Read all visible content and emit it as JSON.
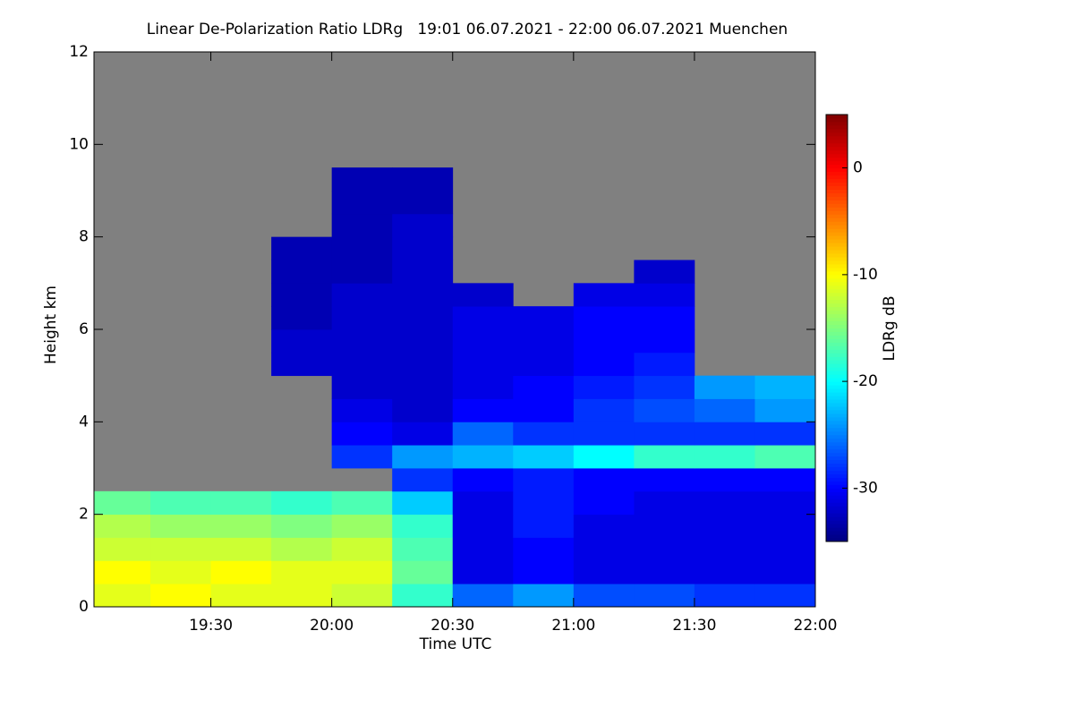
{
  "chart_data": {
    "type": "heatmap",
    "title": "Linear De-Polarization Ratio LDRg   19:01 06.07.2021 - 22:00 06.07.2021 Muenchen",
    "x_label": "Time UTC",
    "y_label": "Height km",
    "colorbar_label": "LDRg dB",
    "background_color": "#808080",
    "colormap": "jet",
    "xlim": [
      "19:01",
      "22:00"
    ],
    "xticks": [
      "19:30",
      "20:00",
      "20:30",
      "21:00",
      "21:30",
      "22:00"
    ],
    "ylim": [
      0,
      12
    ],
    "yticks": [
      0,
      2,
      4,
      6,
      8,
      10,
      12
    ],
    "clim": [
      -35,
      5
    ],
    "cticks": [
      0,
      -10,
      -20,
      -30
    ],
    "x_bins": [
      "19:01",
      "19:15",
      "19:30",
      "19:45",
      "20:00",
      "20:15",
      "20:30",
      "20:45",
      "21:00",
      "21:15",
      "21:30",
      "21:45",
      "22:00"
    ],
    "y_bins": [
      0,
      0.5,
      1,
      1.5,
      2,
      2.5,
      3,
      3.5,
      4,
      4.5,
      5,
      5.5,
      6,
      6.5,
      7,
      7.5,
      8,
      8.5,
      9,
      9.5
    ],
    "values": [
      [
        -11,
        -10,
        -11,
        -11,
        -12,
        -18,
        -26,
        -24,
        -27,
        -27,
        -28,
        -28
      ],
      [
        -10,
        -11,
        -10,
        -11,
        -11,
        -16,
        -31,
        -30,
        -31,
        -31,
        -31,
        -31
      ],
      [
        -12,
        -12,
        -12,
        -13,
        -12,
        -17,
        -31,
        -30,
        -31,
        -31,
        -31,
        -31
      ],
      [
        -13,
        -14,
        -14,
        -15,
        -14,
        -18,
        -31,
        -29,
        -31,
        -31,
        -31,
        -31
      ],
      [
        -16,
        -17,
        -17,
        -18,
        -17,
        -22,
        -31,
        -29,
        -30,
        -31,
        -31,
        -31
      ],
      [
        null,
        null,
        null,
        null,
        null,
        -28,
        -30,
        -29,
        -30,
        -30,
        -30,
        -30
      ],
      [
        null,
        null,
        null,
        null,
        -28,
        -24,
        -23,
        -22,
        -20,
        -18,
        -18,
        -17
      ],
      [
        null,
        null,
        null,
        null,
        -30,
        -31,
        -26,
        -28,
        -28,
        -28,
        -28,
        -28
      ],
      [
        null,
        null,
        null,
        null,
        -31,
        -32,
        -30,
        -30,
        -28,
        -27,
        -26,
        -24
      ],
      [
        null,
        null,
        null,
        null,
        -32,
        -32,
        -31,
        -30,
        -29,
        -28,
        -24,
        -23
      ],
      [
        null,
        null,
        null,
        -32,
        -32,
        -32,
        -31,
        -31,
        -30,
        -29,
        null,
        null
      ],
      [
        null,
        null,
        null,
        -32,
        -32,
        -32,
        -31,
        -31,
        -30,
        -30,
        null,
        null
      ],
      [
        null,
        null,
        null,
        -33,
        -32,
        -32,
        -31,
        -31,
        -30,
        -30,
        null,
        null
      ],
      [
        null,
        null,
        null,
        -33,
        -32,
        -32,
        -32,
        null,
        -31,
        -31,
        null,
        null
      ],
      [
        null,
        null,
        null,
        -33,
        -33,
        -32,
        null,
        null,
        null,
        -32,
        null,
        null
      ],
      [
        null,
        null,
        null,
        -33,
        -33,
        -32,
        null,
        null,
        null,
        null,
        null,
        null
      ],
      [
        null,
        null,
        null,
        null,
        -33,
        -32,
        null,
        null,
        null,
        null,
        null,
        null
      ],
      [
        null,
        null,
        null,
        null,
        -33,
        -33,
        null,
        null,
        null,
        null,
        null,
        null
      ],
      [
        null,
        null,
        null,
        null,
        -33,
        -33,
        null,
        null,
        null,
        null,
        null,
        null
      ]
    ]
  }
}
